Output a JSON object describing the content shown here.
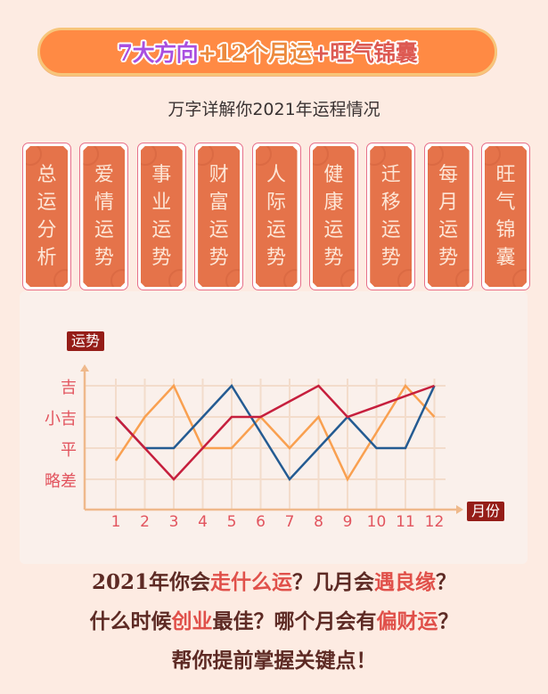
{
  "banner": {
    "segments": [
      {
        "text": "7大方向",
        "color": "#a94fe0"
      },
      {
        "text": "+12个月运",
        "color": "#ec8a3d"
      },
      {
        "text": "+旺气锦囊",
        "color": "#dd5a52"
      }
    ]
  },
  "subtitle": "万字详解你2021年运程情况",
  "tiles": [
    {
      "label": "总运分析",
      "chars": [
        "总",
        "运",
        "分",
        "析"
      ]
    },
    {
      "label": "爱情运势",
      "chars": [
        "爱",
        "情",
        "运",
        "势"
      ]
    },
    {
      "label": "事业运势",
      "chars": [
        "事",
        "业",
        "运",
        "势"
      ]
    },
    {
      "label": "财富运势",
      "chars": [
        "财",
        "富",
        "运",
        "势"
      ]
    },
    {
      "label": "人际运势",
      "chars": [
        "人",
        "际",
        "运",
        "势"
      ]
    },
    {
      "label": "健康运势",
      "chars": [
        "健",
        "康",
        "运",
        "势"
      ]
    },
    {
      "label": "迁移运势",
      "chars": [
        "迁",
        "移",
        "运",
        "势"
      ]
    },
    {
      "label": "每月运势",
      "chars": [
        "每",
        "月",
        "运",
        "势"
      ]
    },
    {
      "label": "旺气锦囊",
      "chars": [
        "旺",
        "气",
        "锦",
        "囊"
      ]
    }
  ],
  "colors": {
    "background": "#fdebe2",
    "banner": "#ff8a44",
    "tile": "#e5734a",
    "tag": "#951d18",
    "axis": "#efb98b",
    "grid": "#f3dccb",
    "label": "#e2545e"
  },
  "chart_data": {
    "type": "line",
    "title": "",
    "xlabel": "月份",
    "ylabel": "运势",
    "x": [
      1,
      2,
      3,
      4,
      5,
      6,
      7,
      8,
      9,
      10,
      11,
      12
    ],
    "y_levels": [
      {
        "value": 1,
        "label": "略差"
      },
      {
        "value": 2,
        "label": "平"
      },
      {
        "value": 3,
        "label": "小吉"
      },
      {
        "value": 4,
        "label": "吉"
      }
    ],
    "ylim": [
      0,
      4.5
    ],
    "grid": true,
    "legend": null,
    "series": [
      {
        "name": "orange",
        "color": "#f9a050",
        "values": [
          1.6,
          3,
          4,
          2,
          2,
          3,
          2,
          3,
          1,
          2.5,
          4,
          3
        ]
      },
      {
        "name": "blue",
        "color": "#245b92",
        "values": [
          3,
          2,
          2,
          3,
          4,
          2.5,
          1,
          2,
          3,
          2,
          2,
          4
        ]
      },
      {
        "name": "red",
        "color": "#c61f3d",
        "values": [
          3,
          2,
          1,
          2,
          3,
          3,
          3.5,
          4,
          3,
          3.33,
          3.67,
          4
        ]
      }
    ]
  },
  "bottom": {
    "lines": [
      [
        {
          "text": "2021年你会",
          "hl": false
        },
        {
          "text": "走什么运",
          "hl": true
        },
        {
          "text": "？几月会",
          "hl": false
        },
        {
          "text": "遇良缘",
          "hl": true
        },
        {
          "text": "？",
          "hl": false
        }
      ],
      [
        {
          "text": "什么时候",
          "hl": false
        },
        {
          "text": "创业",
          "hl": true
        },
        {
          "text": "最佳？哪个月会有",
          "hl": false
        },
        {
          "text": "偏财运",
          "hl": true
        },
        {
          "text": "？",
          "hl": false
        }
      ],
      [
        {
          "text": "帮你提前掌握关键点！",
          "hl": false
        }
      ]
    ]
  }
}
